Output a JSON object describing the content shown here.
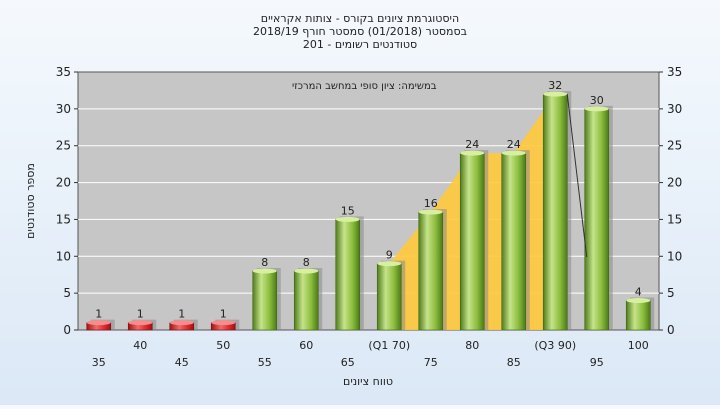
{
  "chart_data": {
    "type": "bar",
    "title_lines": [
      "היסטוגרמת ציונים בקורס - צותות אקראיים",
      "בסמסטר  (01/2018)  סמסטר חורף 2018/19",
      "סטודנטים רשומים - 201"
    ],
    "annotation": "במשימה: ציון סופי במחשב המרכזי",
    "xlabel": "טווח ציונים",
    "ylabel": "מספר סטודנטים",
    "ylim": [
      0,
      35
    ],
    "yticks": [
      0,
      5,
      10,
      15,
      20,
      25,
      30,
      35
    ],
    "categories": [
      "35",
      "40",
      "45",
      "50",
      "55",
      "60",
      "65",
      "(Q1 70)",
      "75",
      "80",
      "85",
      "(Q3 90)",
      "95",
      "100"
    ],
    "values": [
      1,
      1,
      1,
      1,
      8,
      8,
      15,
      9,
      16,
      24,
      24,
      32,
      30,
      4
    ],
    "low_color": "#d9282b",
    "bar_color": "#8fbf3f",
    "iqr_fill_color": "#ffc93c",
    "iqr_range": [
      "(Q1 70)",
      "(Q3 90)"
    ],
    "grid": true
  }
}
